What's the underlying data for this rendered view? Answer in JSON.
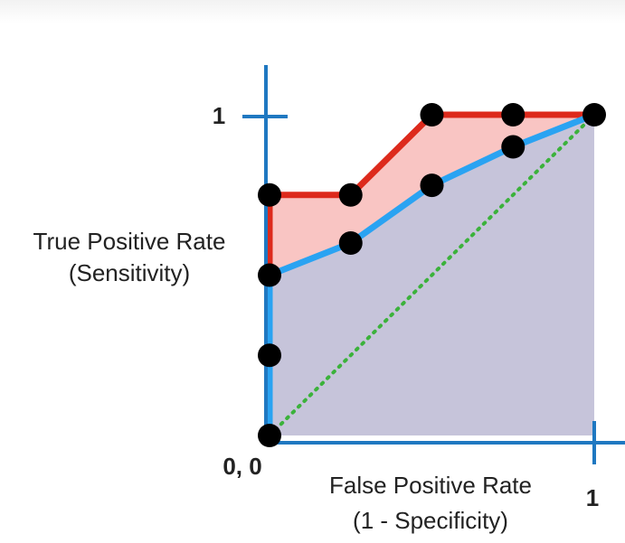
{
  "chart_data": {
    "type": "line",
    "title": "",
    "xlabel": "False Positive Rate",
    "xlabel_sub": "(1 - Specificity)",
    "ylabel": "True Positive Rate",
    "ylabel_sub": "(Sensitivity)",
    "xlim": [
      0,
      1
    ],
    "ylim": [
      0,
      1
    ],
    "origin_label": "0, 0",
    "x_tick_labels": [
      {
        "value": 1,
        "label": "1"
      }
    ],
    "y_tick_labels": [
      {
        "value": 1,
        "label": "1"
      }
    ],
    "grid": false,
    "series": [
      {
        "color": "#dd2a1c",
        "fill": "#f9c5c3",
        "points": [
          {
            "x": 0,
            "y": 0
          },
          {
            "x": 0,
            "y": 0.75
          },
          {
            "x": 0.25,
            "y": 0.75
          },
          {
            "x": 0.5,
            "y": 1
          },
          {
            "x": 0.75,
            "y": 1
          },
          {
            "x": 1,
            "y": 1
          }
        ]
      },
      {
        "color": "#2aa3f2",
        "fill": "#c6c4da",
        "points": [
          {
            "x": 0,
            "y": 0
          },
          {
            "x": 0,
            "y": 0.5
          },
          {
            "x": 0.25,
            "y": 0.6
          },
          {
            "x": 0.5,
            "y": 0.78
          },
          {
            "x": 0.75,
            "y": 0.9
          },
          {
            "x": 1,
            "y": 1
          }
        ]
      },
      {
        "color": "#3bb23b",
        "style": "dotted",
        "points": [
          {
            "x": 0,
            "y": 0
          },
          {
            "x": 1,
            "y": 1
          }
        ]
      }
    ],
    "markers": [
      {
        "x": 0,
        "y": 0
      },
      {
        "x": 0,
        "y": 0.25
      },
      {
        "x": 0,
        "y": 0.5
      },
      {
        "x": 0,
        "y": 0.75
      },
      {
        "x": 0.25,
        "y": 0.75
      },
      {
        "x": 0.25,
        "y": 0.6
      },
      {
        "x": 0.5,
        "y": 1
      },
      {
        "x": 0.5,
        "y": 0.78
      },
      {
        "x": 0.75,
        "y": 1
      },
      {
        "x": 0.75,
        "y": 0.9
      },
      {
        "x": 1,
        "y": 1
      }
    ],
    "axis_color": "#1f78c1",
    "marker_color": "#000000"
  }
}
